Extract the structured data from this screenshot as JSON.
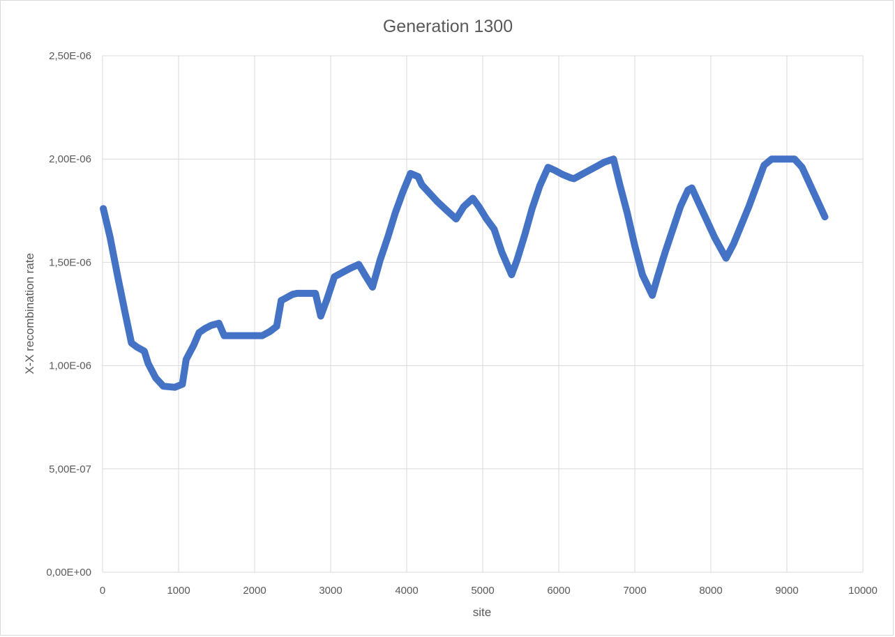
{
  "chart_data": {
    "type": "line",
    "title": "Generation 1300",
    "xlabel": "site",
    "ylabel": "X-X recombination rate",
    "xlim": [
      0,
      10000
    ],
    "ylim": [
      0,
      2.5e-06
    ],
    "x_ticks": [
      "0",
      "1000",
      "2000",
      "3000",
      "4000",
      "5000",
      "6000",
      "7000",
      "8000",
      "9000",
      "10000"
    ],
    "y_ticks": [
      "0,00E+00",
      "5,00E-07",
      "1,00E-06",
      "1,50E-06",
      "2,00E-06",
      "2,50E-06"
    ],
    "grid": true,
    "color": "#4472C4",
    "series": [
      {
        "x": [
          10,
          100,
          200,
          300,
          380,
          450,
          550,
          600,
          700,
          800,
          950,
          1050,
          1100,
          1200,
          1270,
          1350,
          1430,
          1530,
          1600,
          1800,
          2000,
          2100,
          2200,
          2290,
          2350,
          2400,
          2500,
          2560,
          2650,
          2700,
          2800,
          2870,
          2950,
          3050,
          3150,
          3250,
          3370,
          3450,
          3550,
          3650,
          3750,
          3850,
          3950,
          4050,
          4150,
          4200,
          4300,
          4400,
          4500,
          4650,
          4750,
          4870,
          4950,
          5050,
          5150,
          5250,
          5380,
          5450,
          5550,
          5650,
          5750,
          5860,
          5950,
          6050,
          6150,
          6200,
          6300,
          6400,
          6500,
          6600,
          6720,
          6800,
          6900,
          7000,
          7100,
          7230,
          7300,
          7400,
          7500,
          7600,
          7700,
          7750,
          7850,
          7950,
          8050,
          8200,
          8300,
          8400,
          8500,
          8600,
          8700,
          8800,
          8900,
          9000,
          9100,
          9200,
          9300,
          9400,
          9500
        ],
        "y": [
          1.76e-06,
          1.62e-06,
          1.43e-06,
          1.25e-06,
          1.11e-06,
          1.09e-06,
          1.07e-06,
          1.01e-06,
          9.4e-07,
          9e-07,
          8.95e-07,
          9.1e-07,
          1.03e-06,
          1.1e-06,
          1.16e-06,
          1.18e-06,
          1.195e-06,
          1.205e-06,
          1.145e-06,
          1.145e-06,
          1.145e-06,
          1.145e-06,
          1.165e-06,
          1.19e-06,
          1.315e-06,
          1.325e-06,
          1.345e-06,
          1.35e-06,
          1.35e-06,
          1.35e-06,
          1.35e-06,
          1.24e-06,
          1.32e-06,
          1.43e-06,
          1.45e-06,
          1.47e-06,
          1.49e-06,
          1.44e-06,
          1.38e-06,
          1.51e-06,
          1.62e-06,
          1.74e-06,
          1.84e-06,
          1.93e-06,
          1.915e-06,
          1.875e-06,
          1.835e-06,
          1.795e-06,
          1.76e-06,
          1.71e-06,
          1.77e-06,
          1.81e-06,
          1.77e-06,
          1.71e-06,
          1.66e-06,
          1.55e-06,
          1.44e-06,
          1.51e-06,
          1.63e-06,
          1.76e-06,
          1.87e-06,
          1.96e-06,
          1.945e-06,
          1.925e-06,
          1.91e-06,
          1.905e-06,
          1.925e-06,
          1.945e-06,
          1.965e-06,
          1.985e-06,
          2e-06,
          1.88e-06,
          1.74e-06,
          1.58e-06,
          1.44e-06,
          1.34e-06,
          1.43e-06,
          1.55e-06,
          1.66e-06,
          1.77e-06,
          1.85e-06,
          1.86e-06,
          1.78e-06,
          1.7e-06,
          1.62e-06,
          1.52e-06,
          1.59e-06,
          1.68e-06,
          1.77e-06,
          1.87e-06,
          1.97e-06,
          2e-06,
          2e-06,
          2e-06,
          2e-06,
          1.96e-06,
          1.88e-06,
          1.8e-06,
          1.72e-06
        ]
      }
    ]
  }
}
